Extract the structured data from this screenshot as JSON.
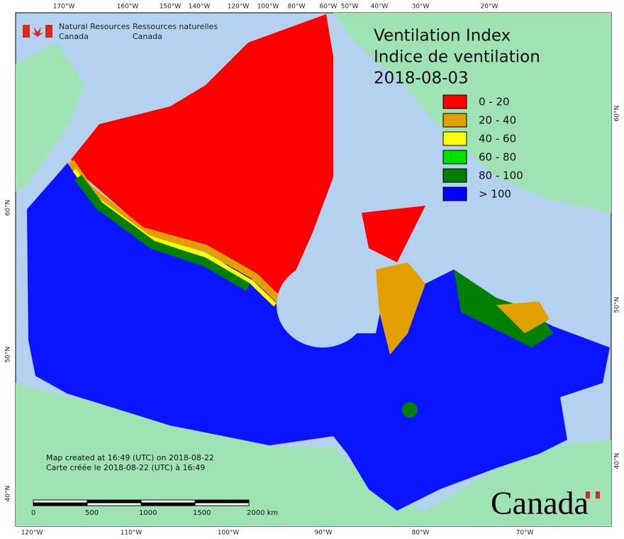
{
  "header": {
    "org_en": [
      "Natural Resources",
      "Canada"
    ],
    "org_fr": [
      "Ressources naturelles",
      "Canada"
    ]
  },
  "title": [
    "Ventilation Index",
    "Indice de ventilation"
  ],
  "date": "2018-08-03",
  "legend": [
    {
      "label": "0 - 20",
      "color": "#ff0000"
    },
    {
      "label": "20 - 40",
      "color": "#e1a000"
    },
    {
      "label": "40 - 60",
      "color": "#ffff00"
    },
    {
      "label": "60 - 80",
      "color": "#00e000"
    },
    {
      "label": "80 - 100",
      "color": "#008000"
    },
    {
      "label": "> 100",
      "color": "#0000ff"
    }
  ],
  "credits": [
    "Map created at 16:49 (UTC) on 2018-08-22",
    "Carte créée le 2018-08-22 (UTC) à 16:49"
  ],
  "scale_bar": {
    "labels": [
      "0",
      "500",
      "1000",
      "1500",
      "2000 km"
    ]
  },
  "graticule": {
    "top": [
      "170°W",
      "160°W",
      "150°W",
      "140°W",
      "120°W",
      "100°W",
      "80°W",
      "60°W",
      "50°W",
      "40°W",
      "30°W",
      "20°W"
    ],
    "bottom": [
      "120°W",
      "110°W",
      "100°W",
      "90°W",
      "80°W",
      "70°W"
    ],
    "left": [
      "60°N",
      "50°N",
      "40°N"
    ],
    "right": [
      "60°N",
      "50°N",
      "40°N"
    ]
  },
  "wordmark": "Canada"
}
